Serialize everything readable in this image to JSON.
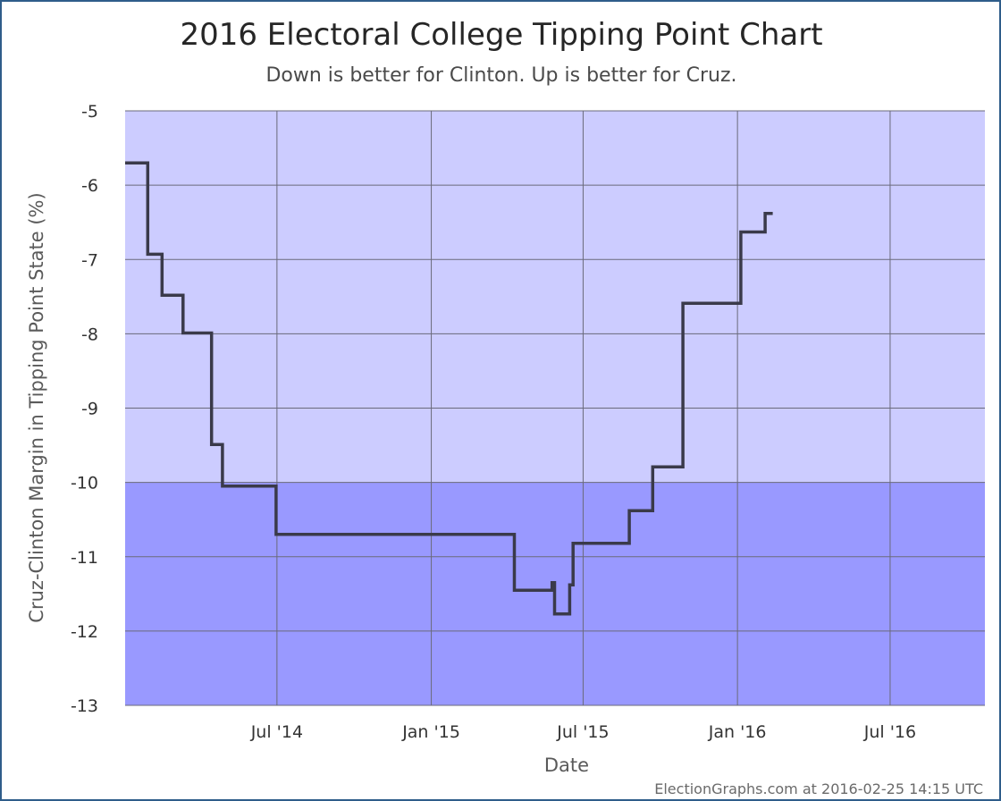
{
  "chart_data": {
    "type": "line",
    "title": "2016 Electoral College Tipping Point Chart",
    "subtitle": "Down is better for Clinton. Up is better for Cruz.",
    "xlabel": "Date",
    "ylabel": "Cruz-Clinton Margin in Tipping Point State (%)",
    "credit": "ElectionGraphs.com at 2016-02-25 14:15 UTC",
    "xlim": [
      "2014-01-01",
      "2016-10-22"
    ],
    "ylim": [
      -13,
      -5
    ],
    "x_ticks": [
      {
        "date": "2014-07-01",
        "label": "Jul '14"
      },
      {
        "date": "2015-01-01",
        "label": "Jan '15"
      },
      {
        "date": "2015-07-01",
        "label": "Jul '15"
      },
      {
        "date": "2016-01-01",
        "label": "Jan '16"
      },
      {
        "date": "2016-07-01",
        "label": "Jul '16"
      }
    ],
    "y_ticks": [
      -5,
      -6,
      -7,
      -8,
      -9,
      -10,
      -11,
      -12,
      -13
    ],
    "y_tick_labels": [
      "-5",
      "-6",
      "-7",
      "-8",
      "-9",
      "-10",
      "-11",
      "-12",
      "-13"
    ],
    "bands": [
      {
        "from": -10,
        "to": -5,
        "color": "#ccccff"
      },
      {
        "from": -13,
        "to": -10,
        "color": "#9999ff"
      }
    ],
    "grid": true,
    "line_color": "#3a3a4a",
    "series": [
      {
        "step": true,
        "points": [
          {
            "x": "2014-01-01",
            "y": -5.7
          },
          {
            "x": "2014-01-28",
            "y": -6.93
          },
          {
            "x": "2014-02-14",
            "y": -7.48
          },
          {
            "x": "2014-03-11",
            "y": -7.99
          },
          {
            "x": "2014-04-14",
            "y": -9.49
          },
          {
            "x": "2014-04-27",
            "y": -10.05
          },
          {
            "x": "2014-06-30",
            "y": -10.7
          },
          {
            "x": "2015-04-10",
            "y": -11.45
          },
          {
            "x": "2015-05-25",
            "y": -11.35
          },
          {
            "x": "2015-05-28",
            "y": -11.77
          },
          {
            "x": "2015-06-15",
            "y": -11.38
          },
          {
            "x": "2015-06-19",
            "y": -10.82
          },
          {
            "x": "2015-08-25",
            "y": -10.38
          },
          {
            "x": "2015-09-22",
            "y": -9.79
          },
          {
            "x": "2015-10-28",
            "y": -7.59
          },
          {
            "x": "2016-01-05",
            "y": -6.63
          },
          {
            "x": "2016-02-03",
            "y": -6.38
          },
          {
            "x": "2016-02-12",
            "y": -6.38
          }
        ]
      }
    ]
  }
}
